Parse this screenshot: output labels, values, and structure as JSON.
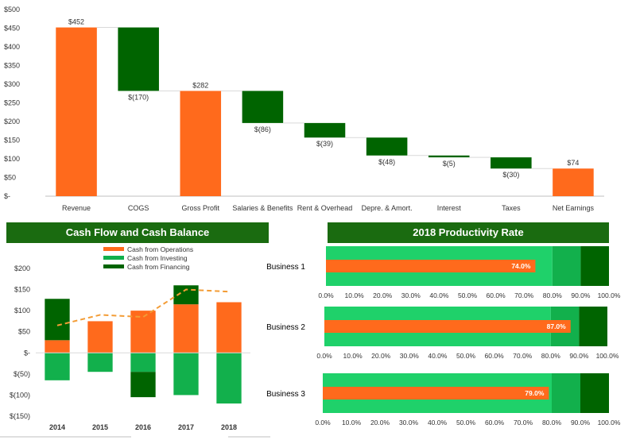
{
  "colors": {
    "orange": "#ff6a1c",
    "green_dark": "#006400",
    "green_mid": "#12b04c",
    "green_light": "#1fd16a",
    "header_bg": "#1a6b10"
  },
  "headers": {
    "cashflow": "Cash Flow and Cash Balance",
    "productivity": "2018 Productivity Rate"
  },
  "chart_data": [
    {
      "type": "bar",
      "subtype": "waterfall",
      "categories": [
        "Revenue",
        "COGS",
        "Gross Profit",
        "Salaries & Benefits",
        "Rent & Overhead",
        "Depre. & Amort.",
        "Interest",
        "Taxes",
        "Net Earnings"
      ],
      "values": [
        452,
        -170,
        282,
        -86,
        -39,
        -48,
        -5,
        -30,
        74
      ],
      "kinds": [
        "total",
        "delta",
        "total",
        "delta",
        "delta",
        "delta",
        "delta",
        "delta",
        "total"
      ],
      "value_labels": [
        "$452",
        "$(170)",
        "$282",
        "$(86)",
        "$(39)",
        "$(48)",
        "$(5)",
        "$(30)",
        "$74"
      ],
      "ylim": [
        0,
        500
      ],
      "yticks": [
        0,
        50,
        100,
        150,
        200,
        250,
        300,
        350,
        400,
        450,
        500
      ],
      "ytick_labels": [
        "$-",
        "$50",
        "$100",
        "$150",
        "$200",
        "$250",
        "$300",
        "$350",
        "$400",
        "$450",
        "$500"
      ],
      "colors": {
        "total": "#ff6a1c",
        "delta": "#006400"
      },
      "grid": false
    },
    {
      "type": "bar",
      "subtype": "stacked-bar-with-line",
      "categories": [
        "2014",
        "2015",
        "2016",
        "2017",
        "2018"
      ],
      "series": [
        {
          "name": "Cash from Operations",
          "color": "#ff6a1c",
          "values": [
            30,
            75,
            100,
            115,
            120
          ]
        },
        {
          "name": "Cash from Investing",
          "color": "#12b04c",
          "values": [
            -65,
            -45,
            -45,
            -100,
            -120
          ]
        },
        {
          "name": "Cash from Financing",
          "color": "#006400",
          "values": [
            98,
            0,
            -60,
            45,
            0
          ]
        }
      ],
      "line": {
        "color": "#f39c35",
        "style": "dashed",
        "values": [
          65,
          90,
          85,
          150,
          145
        ]
      },
      "ylim": [
        -150,
        200
      ],
      "yticks": [
        -150,
        -100,
        -50,
        0,
        50,
        100,
        150,
        200
      ],
      "ytick_labels": [
        "$(150)",
        "$(100)",
        "$(50)",
        "$-",
        "$50",
        "$100",
        "$150",
        "$200"
      ],
      "legend": "top-center",
      "grid": false
    },
    {
      "type": "bar",
      "subtype": "bullet",
      "title": "2018 Productivity Rate",
      "categories": [
        "Business 1",
        "Business 2",
        "Business 3"
      ],
      "values": [
        0.74,
        0.87,
        0.79
      ],
      "value_labels": [
        "74.0%",
        "87.0%",
        "79.0%"
      ],
      "bands": [
        {
          "from": 0.0,
          "to": 0.8,
          "color": "#1fd16a"
        },
        {
          "from": 0.8,
          "to": 0.9,
          "color": "#12b04c"
        },
        {
          "from": 0.9,
          "to": 1.0,
          "color": "#006400"
        }
      ],
      "xlim": [
        0,
        1
      ],
      "xtick_labels": [
        "0.0%",
        "10.0%",
        "20.0%",
        "30.0%",
        "40.0%",
        "50.0%",
        "60.0%",
        "70.0%",
        "80.0%",
        "90.0%",
        "100.0%"
      ],
      "grid": false
    }
  ]
}
